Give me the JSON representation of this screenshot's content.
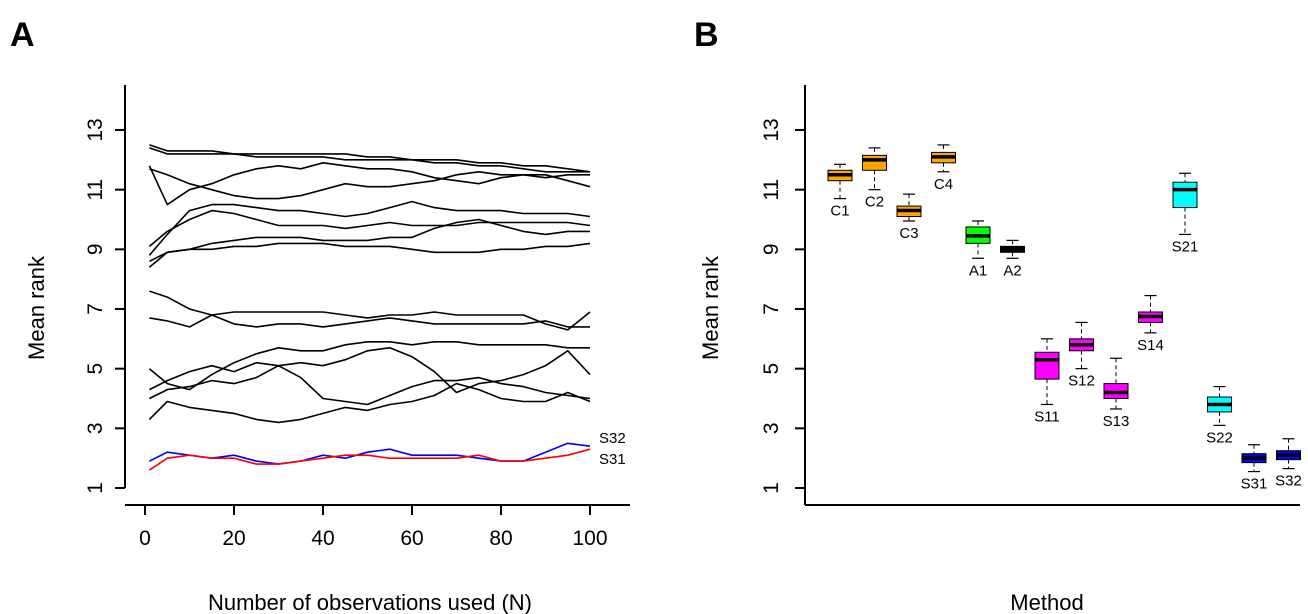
{
  "chart_data": [
    {
      "type": "line",
      "panel_label": "A",
      "xlabel": "Number of observations used (N)",
      "ylabel": "Mean rank",
      "xlim": [
        0,
        100
      ],
      "ylim": [
        1,
        13
      ],
      "x_ticks": [
        "0",
        "20",
        "40",
        "60",
        "80",
        "100"
      ],
      "y_ticks": [
        "1",
        "3",
        "5",
        "7",
        "9",
        "11",
        "13"
      ],
      "x": [
        1,
        5,
        10,
        15,
        20,
        25,
        30,
        35,
        40,
        45,
        50,
        55,
        60,
        65,
        70,
        75,
        80,
        85,
        90,
        95,
        100
      ],
      "series": [
        {
          "color": "#000000",
          "label": "",
          "values": [
            12.5,
            12.3,
            12.3,
            12.3,
            12.2,
            12.2,
            12.2,
            12.2,
            12.2,
            12.2,
            12.1,
            12.1,
            12.0,
            12.0,
            12.0,
            11.9,
            11.9,
            11.8,
            11.8,
            11.7,
            11.6
          ]
        },
        {
          "color": "#000000",
          "label": "",
          "values": [
            12.4,
            12.2,
            12.2,
            12.2,
            12.2,
            12.1,
            12.1,
            12.1,
            12.1,
            12.0,
            12.0,
            12.0,
            12.0,
            11.9,
            11.9,
            11.8,
            11.8,
            11.7,
            11.6,
            11.6,
            11.6
          ]
        },
        {
          "color": "#000000",
          "label": "",
          "values": [
            11.8,
            10.5,
            11.0,
            11.2,
            11.5,
            11.7,
            11.8,
            11.7,
            11.9,
            11.8,
            11.7,
            11.7,
            11.6,
            11.4,
            11.3,
            11.2,
            11.4,
            11.5,
            11.5,
            11.3,
            11.1
          ]
        },
        {
          "color": "#000000",
          "label": "",
          "values": [
            11.7,
            11.5,
            11.2,
            11.0,
            10.8,
            10.7,
            10.7,
            10.8,
            11.0,
            11.2,
            11.1,
            11.1,
            11.2,
            11.3,
            11.5,
            11.6,
            11.5,
            11.5,
            11.4,
            11.5,
            11.5
          ]
        },
        {
          "color": "#000000",
          "label": "",
          "values": [
            8.8,
            9.5,
            10.3,
            10.5,
            10.5,
            10.4,
            10.3,
            10.3,
            10.2,
            10.1,
            10.2,
            10.4,
            10.6,
            10.4,
            10.3,
            10.3,
            10.3,
            10.2,
            10.2,
            10.2,
            10.1
          ]
        },
        {
          "color": "#000000",
          "label": "",
          "values": [
            9.1,
            9.6,
            10.0,
            10.3,
            10.2,
            10.0,
            9.8,
            9.8,
            9.8,
            9.7,
            9.8,
            9.9,
            9.8,
            9.8,
            9.8,
            9.9,
            9.9,
            9.9,
            9.9,
            9.9,
            9.8
          ]
        },
        {
          "color": "#000000",
          "label": "",
          "values": [
            8.6,
            8.9,
            9.0,
            9.2,
            9.3,
            9.4,
            9.4,
            9.4,
            9.3,
            9.3,
            9.3,
            9.4,
            9.4,
            9.7,
            9.9,
            10.0,
            9.8,
            9.6,
            9.5,
            9.6,
            9.6
          ]
        },
        {
          "color": "#000000",
          "label": "",
          "values": [
            8.4,
            8.9,
            9.0,
            9.0,
            9.1,
            9.1,
            9.2,
            9.2,
            9.2,
            9.1,
            9.1,
            9.1,
            9.0,
            8.9,
            8.9,
            8.9,
            9.0,
            9.0,
            9.1,
            9.1,
            9.2
          ]
        },
        {
          "color": "#000000",
          "label": "",
          "values": [
            7.6,
            7.4,
            7.0,
            6.8,
            6.9,
            6.9,
            6.9,
            6.9,
            6.9,
            6.8,
            6.7,
            6.8,
            6.8,
            6.9,
            6.8,
            6.8,
            6.8,
            6.8,
            6.5,
            6.3,
            6.9
          ]
        },
        {
          "color": "#000000",
          "label": "",
          "values": [
            6.7,
            6.6,
            6.4,
            6.8,
            6.5,
            6.4,
            6.5,
            6.5,
            6.4,
            6.5,
            6.6,
            6.7,
            6.6,
            6.5,
            6.5,
            6.5,
            6.5,
            6.5,
            6.6,
            6.4,
            6.4
          ]
        },
        {
          "color": "#000000",
          "label": "",
          "values": [
            5.0,
            4.5,
            4.3,
            4.8,
            5.2,
            5.5,
            5.7,
            5.6,
            5.6,
            5.8,
            5.9,
            5.9,
            5.8,
            5.9,
            5.9,
            5.8,
            5.8,
            5.8,
            5.8,
            5.7,
            5.7
          ]
        },
        {
          "color": "#000000",
          "label": "",
          "values": [
            4.3,
            4.6,
            4.9,
            5.1,
            4.9,
            5.2,
            5.1,
            5.2,
            5.1,
            5.3,
            5.6,
            5.7,
            5.4,
            4.9,
            4.2,
            4.5,
            4.6,
            4.8,
            5.1,
            5.6,
            4.8
          ]
        },
        {
          "color": "#000000",
          "label": "",
          "values": [
            4.0,
            4.3,
            4.4,
            4.6,
            4.5,
            4.7,
            5.1,
            4.7,
            4.0,
            3.9,
            3.8,
            4.1,
            4.4,
            4.6,
            4.6,
            4.7,
            4.5,
            4.4,
            4.2,
            4.1,
            4.0
          ]
        },
        {
          "color": "#000000",
          "label": "",
          "values": [
            3.3,
            3.9,
            3.7,
            3.6,
            3.5,
            3.3,
            3.2,
            3.3,
            3.5,
            3.7,
            3.6,
            3.8,
            3.9,
            4.1,
            4.5,
            4.3,
            4.0,
            3.9,
            3.9,
            4.2,
            3.9
          ]
        },
        {
          "color": "#0000ff",
          "label": "S32",
          "values": [
            1.9,
            2.2,
            2.1,
            2.0,
            2.1,
            1.9,
            1.8,
            1.9,
            2.1,
            2.0,
            2.2,
            2.3,
            2.1,
            2.1,
            2.1,
            2.0,
            1.9,
            1.9,
            2.2,
            2.5,
            2.4
          ]
        },
        {
          "color": "#ff0000",
          "label": "S31",
          "values": [
            1.6,
            2.0,
            2.1,
            2.0,
            2.0,
            1.8,
            1.8,
            1.9,
            2.0,
            2.1,
            2.1,
            2.0,
            2.0,
            2.0,
            2.0,
            2.1,
            1.9,
            1.9,
            2.0,
            2.1,
            2.3
          ]
        }
      ]
    },
    {
      "type": "box",
      "panel_label": "B",
      "xlabel": "Method",
      "ylabel": "Mean rank",
      "ylim": [
        1,
        13
      ],
      "y_ticks": [
        "1",
        "3",
        "5",
        "7",
        "9",
        "11",
        "13"
      ],
      "boxes": [
        {
          "label": "C1",
          "color": "#ffa500",
          "min": 10.7,
          "q1": 11.3,
          "median": 11.5,
          "q3": 11.65,
          "max": 11.85
        },
        {
          "label": "C2",
          "color": "#ffa500",
          "min": 11.0,
          "q1": 11.65,
          "median": 12.0,
          "q3": 12.15,
          "max": 12.4
        },
        {
          "label": "C3",
          "color": "#ffa500",
          "min": 9.95,
          "q1": 10.1,
          "median": 10.3,
          "q3": 10.45,
          "max": 10.85
        },
        {
          "label": "C4",
          "color": "#ffa500",
          "min": 11.6,
          "q1": 11.9,
          "median": 12.1,
          "q3": 12.25,
          "max": 12.5
        },
        {
          "label": "A1",
          "color": "#00ff00",
          "min": 8.7,
          "q1": 9.2,
          "median": 9.45,
          "q3": 9.75,
          "max": 9.95
        },
        {
          "label": "A2",
          "color": "#000000",
          "min": 8.7,
          "q1": 8.9,
          "median": 9.0,
          "q3": 9.1,
          "max": 9.3
        },
        {
          "label": "S11",
          "color": "#ff00ff",
          "min": 3.8,
          "q1": 4.65,
          "median": 5.3,
          "q3": 5.55,
          "max": 6.0
        },
        {
          "label": "S12",
          "color": "#ff00ff",
          "min": 5.0,
          "q1": 5.6,
          "median": 5.8,
          "q3": 6.0,
          "max": 6.55
        },
        {
          "label": "S13",
          "color": "#ff00ff",
          "min": 3.65,
          "q1": 4.0,
          "median": 4.2,
          "q3": 4.5,
          "max": 5.35
        },
        {
          "label": "S14",
          "color": "#ff00ff",
          "min": 6.2,
          "q1": 6.55,
          "median": 6.75,
          "q3": 6.9,
          "max": 7.45
        },
        {
          "label": "S21",
          "color": "#00ffff",
          "min": 9.5,
          "q1": 10.4,
          "median": 11.0,
          "q3": 11.25,
          "max": 11.55
        },
        {
          "label": "S22",
          "color": "#00ffff",
          "min": 3.1,
          "q1": 3.55,
          "median": 3.8,
          "q3": 4.05,
          "max": 4.4
        },
        {
          "label": "S31",
          "color": "#0000ff",
          "min": 1.55,
          "q1": 1.85,
          "median": 2.0,
          "q3": 2.15,
          "max": 2.45
        },
        {
          "label": "S32",
          "color": "#0000ff",
          "min": 1.65,
          "q1": 1.95,
          "median": 2.1,
          "q3": 2.25,
          "max": 2.65
        }
      ]
    }
  ]
}
